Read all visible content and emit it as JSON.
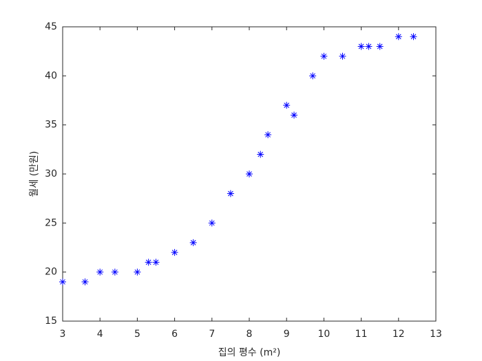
{
  "chart_data": {
    "type": "scatter",
    "x_label": "집의 평수 (m²)",
    "y_label": "월세 (만원)",
    "series": [
      {
        "color": "#0000ff",
        "x": [
          3,
          3.6,
          4,
          4.4,
          5,
          5.3,
          5.5,
          6,
          6.5,
          7,
          7.5,
          8,
          8.3,
          8.5,
          9,
          9.2,
          9.7,
          10,
          10.5,
          11,
          11.2,
          11.5,
          12,
          12.4
        ],
        "values": [
          19,
          19,
          20,
          20,
          20,
          21,
          21,
          22,
          23,
          25,
          28,
          30,
          32,
          34,
          37,
          36,
          40,
          42,
          42,
          43,
          43,
          43,
          44,
          44
        ]
      }
    ],
    "xlim": [
      3,
      13
    ],
    "xticks": [
      3,
      4,
      5,
      6,
      7,
      8,
      9,
      10,
      11,
      12,
      13
    ],
    "ylim": [
      15,
      45
    ],
    "yticks": [
      15,
      20,
      25,
      30,
      35,
      40,
      45
    ],
    "marker": "asterisk",
    "grid": false
  }
}
